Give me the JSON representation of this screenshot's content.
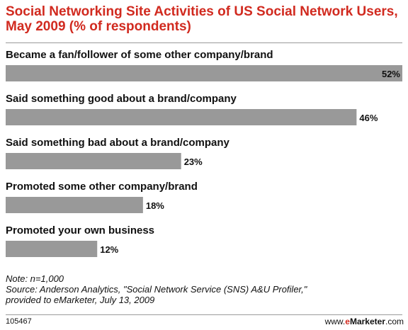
{
  "chart_data": {
    "type": "bar",
    "title": "Social Networking Site Activities of US Social Network Users, May 2009 (% of respondents)",
    "categories": [
      "Became a fan/follower of some other company/brand",
      "Said something good about a brand/company",
      "Said something bad about a brand/company",
      "Promoted some other company/brand",
      "Promoted your own business"
    ],
    "values": [
      52,
      46,
      23,
      18,
      12
    ],
    "value_labels": [
      "52%",
      "46%",
      "23%",
      "18%",
      "12%"
    ],
    "xlim": [
      0,
      52
    ],
    "bar_color": "#999999",
    "grid": false,
    "legend": "none"
  },
  "notes": {
    "note": "Note: n=1,000",
    "source_line1": "Source: Anderson Analytics, \"Social Network Service (SNS) A&U Profiler,\"",
    "source_line2": "provided to eMarketer, July 13, 2009"
  },
  "footer": {
    "id": "105467",
    "brand_prefix": "www.",
    "brand_e": "e",
    "brand_name": "Marketer",
    "brand_suffix": ".com"
  }
}
